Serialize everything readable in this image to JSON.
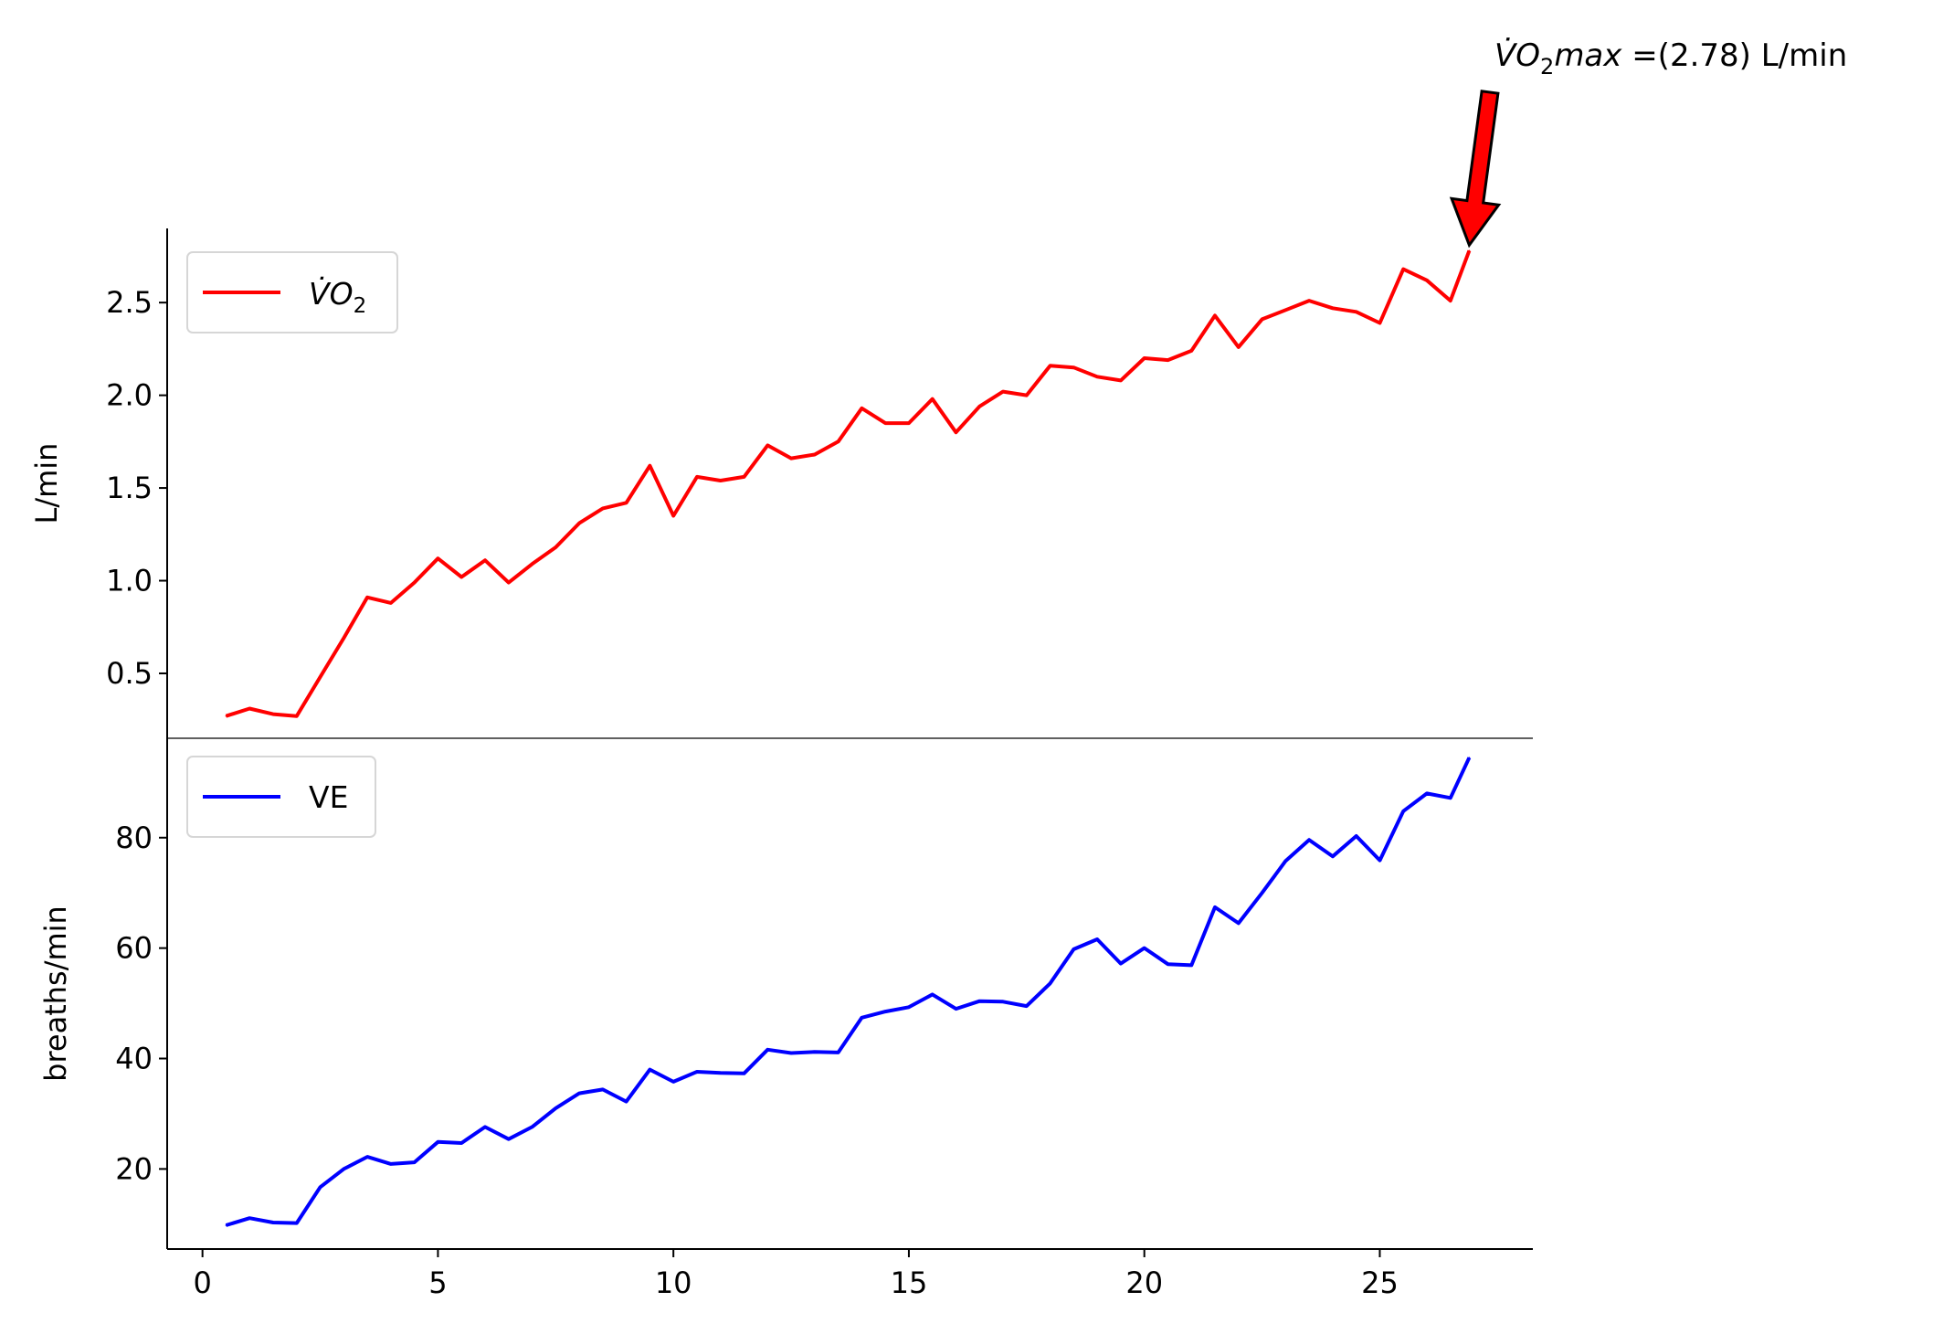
{
  "chart_data": [
    {
      "type": "line",
      "ylabel": "L/min",
      "ylim": [
        0.15,
        2.9
      ],
      "yticks": [
        0.5,
        1.0,
        1.5,
        2.0,
        2.5
      ],
      "ytick_labels": [
        "0.5",
        "1.0",
        "1.5",
        "2.0",
        "2.5"
      ],
      "xlim": [
        -0.75,
        28.25
      ],
      "legend": {
        "position": "upper-left",
        "label_base": "V̇O",
        "label_sub": "2"
      },
      "annotation": {
        "text_base": "V̇O",
        "text_sub": "2",
        "text_var": "max",
        "text_rest": " =(2.78) L/min",
        "target_x": 26.9,
        "target_y": 2.78
      },
      "series": [
        {
          "name": "V̇O2",
          "color": "#ff0000",
          "x": [
            0.5,
            1.0,
            1.5,
            2.0,
            2.5,
            3.0,
            3.5,
            4.0,
            4.5,
            5.0,
            5.5,
            6.0,
            6.5,
            7.0,
            7.5,
            8.0,
            8.5,
            9.0,
            9.5,
            10.0,
            10.5,
            11.0,
            11.5,
            12.0,
            12.5,
            13.0,
            13.5,
            14.0,
            14.5,
            15.0,
            15.5,
            16.0,
            16.5,
            17.0,
            17.5,
            18.0,
            18.5,
            19.0,
            19.5,
            20.0,
            20.5,
            21.0,
            21.5,
            22.0,
            22.5,
            23.0,
            23.5,
            24.0,
            24.5,
            25.0,
            25.5,
            26.0,
            26.5,
            26.9
          ],
          "values": [
            0.27,
            0.31,
            0.28,
            0.27,
            0.48,
            0.69,
            0.91,
            0.88,
            0.99,
            1.12,
            1.02,
            1.11,
            0.99,
            1.09,
            1.18,
            1.31,
            1.39,
            1.42,
            1.62,
            1.35,
            1.56,
            1.54,
            1.56,
            1.73,
            1.66,
            1.68,
            1.75,
            1.93,
            1.85,
            1.85,
            1.98,
            1.8,
            1.94,
            2.02,
            2.0,
            2.16,
            2.15,
            2.1,
            2.08,
            2.2,
            2.19,
            2.24,
            2.43,
            2.26,
            2.41,
            2.46,
            2.51,
            2.47,
            2.45,
            2.39,
            2.68,
            2.62,
            2.51,
            2.78
          ]
        }
      ]
    },
    {
      "type": "line",
      "ylabel": "breaths/min",
      "ylim": [
        5.5,
        98
      ],
      "yticks": [
        20,
        40,
        60,
        80
      ],
      "ytick_labels": [
        "20",
        "40",
        "60",
        "80"
      ],
      "xlim": [
        -0.75,
        28.25
      ],
      "xticks": [
        0,
        5,
        10,
        15,
        20,
        25
      ],
      "xtick_labels": [
        "0",
        "5",
        "10",
        "15",
        "20",
        "25"
      ],
      "legend": {
        "position": "upper-left",
        "label": "VE"
      },
      "series": [
        {
          "name": "VE",
          "color": "#0000ff",
          "x": [
            0.5,
            1.0,
            1.5,
            2.0,
            2.5,
            3.0,
            3.5,
            4.0,
            4.5,
            5.0,
            5.5,
            6.0,
            6.5,
            7.0,
            7.5,
            8.0,
            8.5,
            9.0,
            9.5,
            10.0,
            10.5,
            11.0,
            11.5,
            12.0,
            12.5,
            13.0,
            13.5,
            14.0,
            14.5,
            15.0,
            15.5,
            16.0,
            16.5,
            17.0,
            17.5,
            18.0,
            18.5,
            19.0,
            19.5,
            20.0,
            20.5,
            21.0,
            21.5,
            22.0,
            22.5,
            23.0,
            23.5,
            24.0,
            24.5,
            25.0,
            25.5,
            26.0,
            26.5,
            26.9
          ],
          "values": [
            9.8,
            11.1,
            10.3,
            10.2,
            16.7,
            20.0,
            22.2,
            20.9,
            21.2,
            24.9,
            24.7,
            27.6,
            25.4,
            27.6,
            31.0,
            33.7,
            34.4,
            32.2,
            38.0,
            35.8,
            37.6,
            37.4,
            37.3,
            41.6,
            41.0,
            41.2,
            41.1,
            47.4,
            48.5,
            49.3,
            51.6,
            49.0,
            50.4,
            50.3,
            49.5,
            53.6,
            59.8,
            61.6,
            57.2,
            60.0,
            57.1,
            56.9,
            67.4,
            64.5,
            70.0,
            75.8,
            79.6,
            76.6,
            80.3,
            75.9,
            84.8,
            88.0,
            87.2,
            94.5
          ]
        }
      ]
    }
  ]
}
